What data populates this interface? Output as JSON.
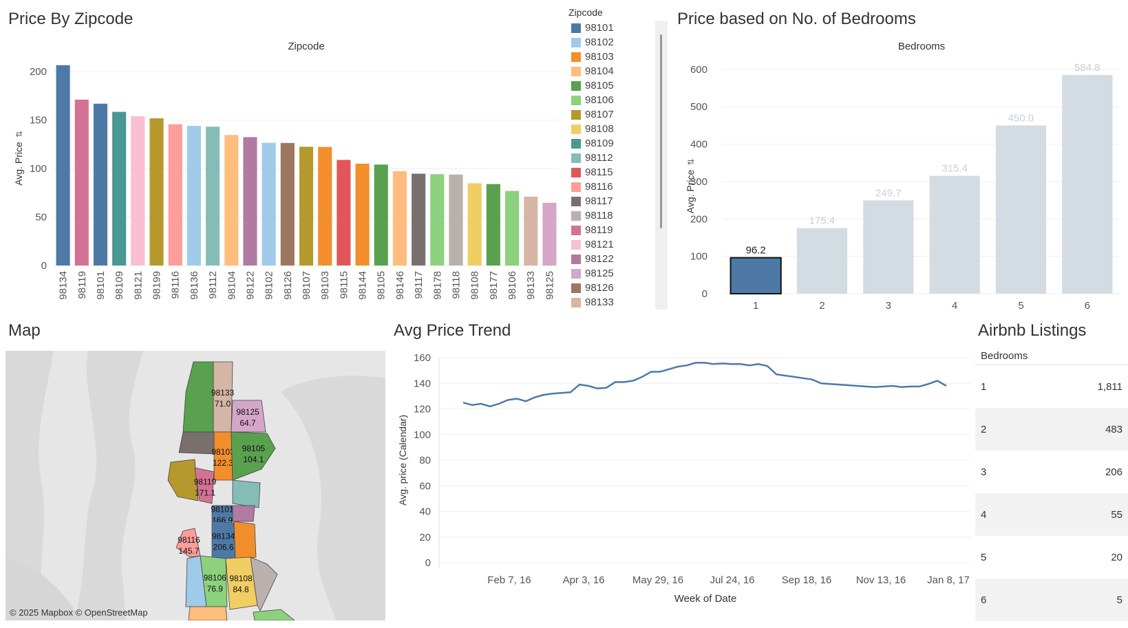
{
  "titles": {
    "zipcode": "Price By Zipcode",
    "bedrooms": "Price based on No. of Bedrooms",
    "map": "Map",
    "trend": "Avg Price Trend",
    "listings": "Airbnb Listings"
  },
  "map": {
    "credit": "© 2025 Mapbox © OpenStreetMap",
    "regions": [
      {
        "zip": "98133",
        "value": "71.0",
        "color": "#d4b5a6"
      },
      {
        "zip": "98125",
        "value": "64.7",
        "color": "#d4a6c8"
      },
      {
        "zip": "98103",
        "value": "122.3",
        "color": "#f28e2b"
      },
      {
        "zip": "98105",
        "value": "104.1",
        "color": "#59a14f"
      },
      {
        "zip": "98119",
        "value": "171.1",
        "color": "#d37295"
      },
      {
        "zip": "98101",
        "value": "166.9",
        "color": "#4e79a7"
      },
      {
        "zip": "98116",
        "value": "145.7",
        "color": "#ff9d9a"
      },
      {
        "zip": "98134",
        "value": "206.6",
        "color": "#4e79a7"
      },
      {
        "zip": "98106",
        "value": "76.9",
        "color": "#8cd17d"
      },
      {
        "zip": "98108",
        "value": "84.8",
        "color": "#f1ce63"
      }
    ]
  },
  "legend": {
    "title": "Zipcode",
    "items": [
      {
        "label": "98101",
        "color": "#4e79a7"
      },
      {
        "label": "98102",
        "color": "#a0cbe8"
      },
      {
        "label": "98103",
        "color": "#f28e2b"
      },
      {
        "label": "98104",
        "color": "#ffbe7d"
      },
      {
        "label": "98105",
        "color": "#59a14f"
      },
      {
        "label": "98106",
        "color": "#8cd17d"
      },
      {
        "label": "98107",
        "color": "#b6992d"
      },
      {
        "label": "98108",
        "color": "#f1ce63"
      },
      {
        "label": "98109",
        "color": "#499894"
      },
      {
        "label": "98112",
        "color": "#86bcb6"
      },
      {
        "label": "98115",
        "color": "#e15759"
      },
      {
        "label": "98116",
        "color": "#ff9d9a"
      },
      {
        "label": "98117",
        "color": "#79706e"
      },
      {
        "label": "98118",
        "color": "#bab0ac"
      },
      {
        "label": "98119",
        "color": "#d37295"
      },
      {
        "label": "98121",
        "color": "#fabfd2"
      },
      {
        "label": "98122",
        "color": "#b07aa1"
      },
      {
        "label": "98125",
        "color": "#d4a6c8"
      },
      {
        "label": "98126",
        "color": "#9d7660"
      },
      {
        "label": "98133",
        "color": "#d7b5a6"
      }
    ]
  },
  "table": {
    "header": "Bedrooms",
    "rows": [
      {
        "bedrooms": "1",
        "count": "1,811"
      },
      {
        "bedrooms": "2",
        "count": "483"
      },
      {
        "bedrooms": "3",
        "count": "206"
      },
      {
        "bedrooms": "4",
        "count": "55"
      },
      {
        "bedrooms": "5",
        "count": "20"
      },
      {
        "bedrooms": "6",
        "count": "5"
      }
    ]
  },
  "chart_data": [
    {
      "id": "zipcode",
      "type": "bar",
      "title": "Zipcode",
      "xlabel": "",
      "ylabel": "Avg. Price",
      "ylim": [
        0,
        210
      ],
      "yticks": [
        0,
        50,
        100,
        150,
        200
      ],
      "categories": [
        "98134",
        "98119",
        "98101",
        "98109",
        "98121",
        "98199",
        "98116",
        "98136",
        "98112",
        "98104",
        "98122",
        "98102",
        "98126",
        "98107",
        "98103",
        "98115",
        "98144",
        "98105",
        "98146",
        "98117",
        "98178",
        "98118",
        "98108",
        "98177",
        "98106",
        "98133",
        "98125"
      ],
      "values": [
        206.6,
        171.1,
        166.9,
        158.5,
        154.0,
        151.8,
        145.7,
        144.0,
        143.2,
        134.6,
        132.4,
        126.6,
        126.4,
        122.5,
        122.3,
        108.9,
        105.0,
        104.1,
        97.3,
        94.7,
        94.2,
        93.8,
        84.8,
        84.0,
        76.9,
        71.0,
        64.7
      ],
      "colors": [
        "#4e79a7",
        "#d37295",
        "#4e79a7",
        "#499894",
        "#fabfd2",
        "#b6992d",
        "#ff9d9a",
        "#a0cbe8",
        "#86bcb6",
        "#ffbe7d",
        "#b07aa1",
        "#a0cbe8",
        "#9d7660",
        "#b6992d",
        "#f28e2b",
        "#e15759",
        "#f28e2b",
        "#59a14f",
        "#ffbe7d",
        "#79706e",
        "#8cd17d",
        "#bab0ac",
        "#f1ce63",
        "#59a14f",
        "#8cd17d",
        "#d7b5a6",
        "#d4a6c8"
      ]
    },
    {
      "id": "bedrooms",
      "type": "bar",
      "title": "Bedrooms",
      "xlabel": "",
      "ylabel": "Avg. Price",
      "ylim": [
        0,
        620
      ],
      "yticks": [
        0,
        100,
        200,
        300,
        400,
        500,
        600
      ],
      "categories": [
        "1",
        "2",
        "3",
        "4",
        "5",
        "6"
      ],
      "values": [
        96.2,
        175.4,
        249.7,
        315.4,
        450.0,
        584.8
      ],
      "labels": [
        "96.2",
        "175.4",
        "249.7",
        "315.4",
        "450.0",
        "584.8"
      ],
      "highlight_index": 0,
      "highlight_color": "#4e79a7",
      "muted_color": "#d3dbe3"
    },
    {
      "id": "trend",
      "type": "line",
      "title": "",
      "xlabel": "Week of Date",
      "ylabel": "Avg. price (Calendar)",
      "ylim": [
        0,
        160
      ],
      "yticks": [
        0,
        20,
        40,
        60,
        80,
        100,
        120,
        140,
        160
      ],
      "xticklabels": [
        "Feb 7, 16",
        "Apr 3, 16",
        "May 29, 16",
        "Jul 24, 16",
        "Sep 18, 16",
        "Nov 13, 16",
        "Jan 8, 17"
      ],
      "color": "#4e79a7",
      "values": [
        125,
        123,
        124,
        122,
        124,
        127,
        128,
        126,
        129,
        131,
        132,
        132.5,
        133,
        139,
        138,
        136,
        136.5,
        141,
        141,
        142,
        145,
        149,
        149,
        151,
        153,
        154,
        156,
        156,
        155,
        155.5,
        155,
        155,
        154,
        155,
        153.5,
        147,
        146,
        145,
        144,
        143,
        140,
        139.5,
        139,
        138.5,
        138,
        137.5,
        137,
        137.5,
        138,
        137,
        137.5,
        137.5,
        139.5,
        142,
        138
      ]
    }
  ]
}
